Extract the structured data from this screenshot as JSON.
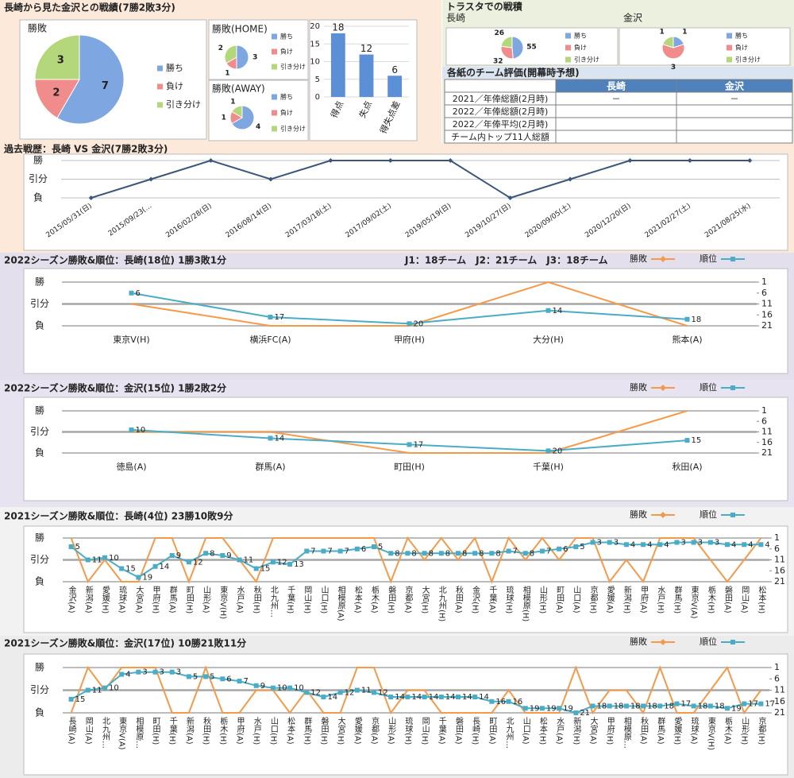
{
  "panels": [
    {
      "title": "長崎から見た金沢との戦績(7勝2敗3分)"
    },
    {
      "title": "トラスタでの戦積"
    }
  ],
  "chart_data": [
    {
      "type": "pie",
      "title": "勝敗",
      "categories": [
        "勝ち",
        "負け",
        "引き分け"
      ],
      "values": [
        7,
        2,
        3
      ],
      "colors": [
        "#7ea6e0",
        "#f08c8c",
        "#b5d77b"
      ]
    },
    {
      "type": "pie",
      "title": "勝敗(HOME)",
      "categories": [
        "勝ち",
        "負け",
        "引き分け"
      ],
      "values": [
        3,
        1,
        2
      ],
      "colors": [
        "#7ea6e0",
        "#f08c8c",
        "#b5d77b"
      ]
    },
    {
      "type": "pie",
      "title": "勝敗(AWAY)",
      "categories": [
        "勝ち",
        "負け",
        "引き分け"
      ],
      "values": [
        4,
        1,
        1
      ],
      "colors": [
        "#7ea6e0",
        "#f08c8c",
        "#b5d77b"
      ]
    },
    {
      "type": "bar",
      "categories": [
        "得点",
        "失点",
        "得失点差"
      ],
      "values": [
        18,
        12,
        6
      ],
      "color": "#5b8fd6",
      "ylim": [
        0,
        20
      ],
      "yticks": [
        0,
        5,
        10,
        15,
        20
      ],
      "grid": true
    },
    {
      "type": "pie",
      "title": "長崎",
      "categories": [
        "勝ち",
        "負け",
        "引き分け"
      ],
      "values": [
        55,
        32,
        26
      ],
      "colors": [
        "#7ea6e0",
        "#f08c8c",
        "#b5d77b"
      ]
    },
    {
      "type": "pie",
      "title": "金沢",
      "categories": [
        "勝ち",
        "負け",
        "引き分け"
      ],
      "values": [
        1,
        3,
        1
      ],
      "colors": [
        "#7ea6e0",
        "#f08c8c",
        "#b5d77b"
      ]
    },
    {
      "type": "line",
      "title": "過去戦歴：長崎 VS 金沢(7勝2敗3分)",
      "categories": [
        "2015/05/31(日)",
        "2015/09/23(…",
        "2016/02/28(日)",
        "2016/08/14(日)",
        "2017/03/18(土)",
        "2017/09/02(土)",
        "2019/05/19(日)",
        "2019/10/27(日)",
        "2020/09/05(土)",
        "2020/12/20(日)",
        "2021/02/27(土)",
        "2021/08/25(水)"
      ],
      "values": [
        -1,
        0,
        1,
        0,
        1,
        1,
        1,
        -1,
        0,
        1,
        1,
        1
      ],
      "color": "#3a5779",
      "ylim": [
        -1,
        1
      ],
      "yticks": [
        {
          "value": 1,
          "label": "勝"
        },
        {
          "value": 0,
          "label": "引分"
        },
        {
          "value": -1,
          "label": "負"
        }
      ],
      "grid": true
    },
    {
      "type": "combo",
      "title": "2022シーズン勝敗&順位：長崎(18位) 1勝3敗1分",
      "subtitle": "J1：18チーム　J2：21チーム　J3：18チーム",
      "categories": [
        "東京V(H)",
        "横浜FC(A)",
        "甲府(H)",
        "大分(H)",
        "熊本(A)"
      ],
      "series": [
        {
          "name": "勝敗",
          "color": "#f59a4a",
          "values": [
            0,
            -1,
            -1,
            1,
            -1
          ]
        },
        {
          "name": "順位",
          "color": "#4bacc6",
          "values": [
            6,
            17,
            20,
            14,
            18
          ],
          "axis": "y2"
        }
      ],
      "ylim": [
        -1,
        1
      ],
      "yticks": [
        {
          "value": 1,
          "label": "勝"
        },
        {
          "value": 0,
          "label": "引分"
        },
        {
          "value": -1,
          "label": "負"
        }
      ],
      "y2lim": [
        21,
        1
      ],
      "y2ticks": [
        1,
        6,
        11,
        16,
        21
      ],
      "grid": true
    },
    {
      "type": "combo",
      "title": "2022シーズン勝敗&順位：金沢(15位) 1勝2敗2分",
      "categories": [
        "徳島(A)",
        "群馬(A)",
        "町田(H)",
        "千葉(H)",
        "秋田(A)"
      ],
      "series": [
        {
          "name": "勝敗",
          "color": "#f59a4a",
          "values": [
            0,
            0,
            -1,
            -1,
            1
          ]
        },
        {
          "name": "順位",
          "color": "#4bacc6",
          "values": [
            10,
            14,
            17,
            20,
            15
          ],
          "axis": "y2"
        }
      ],
      "ylim": [
        -1,
        1
      ],
      "yticks": [
        {
          "value": 1,
          "label": "勝"
        },
        {
          "value": 0,
          "label": "引分"
        },
        {
          "value": -1,
          "label": "負"
        }
      ],
      "y2lim": [
        21,
        1
      ],
      "y2ticks": [
        1,
        6,
        11,
        16,
        21
      ],
      "grid": true
    },
    {
      "type": "combo",
      "title": "2021シーズン勝敗&順位：長崎(4位) 23勝10敗9分",
      "categories": [
        "金沢(A)",
        "新潟(A)",
        "愛媛(H)",
        "琉球(A)",
        "大宮(A)",
        "甲府(H)",
        "群馬(A)",
        "町田(H)",
        "山形(A)",
        "東京V(H)",
        "水戸(A)",
        "秋田(H)",
        "北九州…",
        "千葉(H)",
        "岡山(H)",
        "山口(H)",
        "相模原(A)",
        "松本(A)",
        "栃木(A)",
        "磐田(H)",
        "京都(A)",
        "大宮(H)",
        "北九州(H)",
        "秋田(A)",
        "金沢(H)",
        "千葉(A)",
        "琉球(H)",
        "相模原(H)",
        "山形(H)",
        "町田(A)",
        "山口(A)",
        "京都(H)",
        "愛媛(A)",
        "新潟(H)",
        "甲府(A)",
        "水戸(H)",
        "群馬(H)",
        "東京V(A)",
        "栃木(H)",
        "磐田(A)",
        "岡山(A)",
        "松本(H)"
      ],
      "series": [
        {
          "name": "勝敗",
          "color": "#f59a4a",
          "values": [
            1,
            -1,
            0,
            -1,
            -1,
            1,
            1,
            -1,
            1,
            1,
            0,
            -1,
            1,
            1,
            1,
            1,
            1,
            1,
            1,
            -1,
            1,
            0,
            1,
            0,
            1,
            -1,
            1,
            0,
            1,
            0,
            1,
            1,
            -1,
            0,
            -1,
            1,
            1,
            1,
            0,
            -1,
            0,
            1
          ]
        },
        {
          "name": "順位",
          "color": "#4bacc6",
          "values": [
            5,
            11,
            10,
            15,
            19,
            14,
            9,
            12,
            8,
            9,
            11,
            15,
            12,
            13,
            7,
            7,
            7,
            6,
            5,
            8,
            8,
            8,
            8,
            8,
            8,
            8,
            7,
            8,
            7,
            6,
            5,
            3,
            3,
            4,
            4,
            4,
            3,
            3,
            3,
            4,
            4,
            4
          ],
          "axis": "y2"
        }
      ],
      "ylim": [
        -1,
        1
      ],
      "yticks": [
        {
          "value": 1,
          "label": "勝"
        },
        {
          "value": 0,
          "label": "引分"
        },
        {
          "value": -1,
          "label": "負"
        }
      ],
      "y2lim": [
        21,
        1
      ],
      "y2ticks": [
        1,
        6,
        11,
        16,
        21
      ],
      "grid": true
    },
    {
      "type": "combo",
      "title": "2021シーズン勝敗&順位：金沢(17位) 10勝21敗11分",
      "categories": [
        "長崎(A)",
        "岡山(A)",
        "北九州…",
        "東京V(A)",
        "相模原…",
        "町田(H)",
        "千葉(H)",
        "新潟(A)",
        "秋田(H)",
        "栃木(H)",
        "甲府(A)",
        "水戸(H)",
        "山口(H)",
        "松本(A)",
        "群馬(H)",
        "磐田(H)",
        "大宮(H)",
        "愛媛(A)",
        "京都(A)",
        "山形(A)",
        "琉球(H)",
        "岡山(H)",
        "千葉(A)",
        "磐田(A)",
        "長崎(H)",
        "町田(A)",
        "北九州…",
        "山口(A)",
        "松本(H)",
        "水戸(A)",
        "新潟(H)",
        "大宮(A)",
        "甲府(H)",
        "相模原…",
        "秋田(A)",
        "群馬(A)",
        "愛媛(H)",
        "琉球(A)",
        "東京V(H)",
        "栃木(A)",
        "山形(H)",
        "京都(H)"
      ],
      "series": [
        {
          "name": "勝敗",
          "color": "#f59a4a",
          "values": [
            -1,
            1,
            0,
            1,
            1,
            1,
            -1,
            -1,
            1,
            -1,
            -1,
            0,
            0,
            -1,
            0,
            -1,
            -1,
            1,
            1,
            -1,
            0,
            0,
            -1,
            -1,
            -1,
            -1,
            0,
            -1,
            -1,
            -1,
            1,
            -1,
            0,
            0,
            -1,
            1,
            -1,
            -1,
            0,
            1,
            -1,
            0
          ]
        },
        {
          "name": "順位",
          "color": "#4bacc6",
          "values": [
            15,
            11,
            10,
            4,
            3,
            3,
            3,
            5,
            5,
            6,
            7,
            9,
            10,
            10,
            12,
            14,
            12,
            11,
            12,
            14,
            14,
            14,
            14,
            14,
            14,
            16,
            16,
            19,
            19,
            19,
            21,
            18,
            18,
            18,
            18,
            18,
            17,
            18,
            18,
            19,
            17,
            17
          ],
          "axis": "y2"
        }
      ],
      "ylim": [
        -1,
        1
      ],
      "yticks": [
        {
          "value": 1,
          "label": "勝"
        },
        {
          "value": 0,
          "label": "引分"
        },
        {
          "value": -1,
          "label": "負"
        }
      ],
      "y2lim": [
        21,
        1
      ],
      "y2ticks": [
        1,
        6,
        11,
        16,
        21
      ],
      "grid": true
    }
  ],
  "table": {
    "title": "各紙のチーム評価(開幕時予想)",
    "header": [
      "長崎",
      "金沢"
    ],
    "rows": [
      [
        "2021／年俸総額(2月時)",
        "－",
        "－"
      ],
      [
        "2022／年俸総額(2月時)"
      ],
      [
        "2022／年俸平均(2月時)"
      ],
      [
        "チーム内トップ11人総額"
      ]
    ]
  }
}
